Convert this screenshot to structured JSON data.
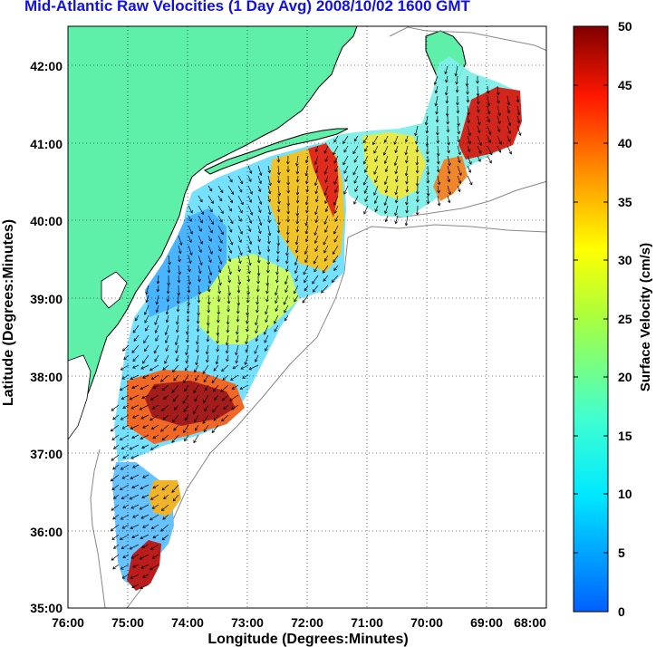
{
  "title": "Mid-Atlantic Raw Velocities (1 Day Avg) 2008/10/02 1600 GMT",
  "map": {
    "xlabel": "Longitude (Degrees:Minutes)",
    "ylabel": "Latitude (Degrees:Minutes)",
    "x_ticks": [
      "76:00",
      "75:00",
      "74:00",
      "73:00",
      "72:00",
      "71:00",
      "70:00",
      "69:00",
      "68:00"
    ],
    "y_ticks": [
      "42:00",
      "41:00",
      "40:00",
      "39:00",
      "38:00",
      "37:00",
      "36:00",
      "35:00"
    ],
    "lon_range": [
      -76,
      -68
    ],
    "lat_range": [
      35,
      42.5
    ],
    "grid": "dotted",
    "land_color": "#5ef0a8"
  },
  "colorbar": {
    "label": "Surface Velocity (cm/s)",
    "ticks": [
      "50",
      "45",
      "40",
      "35",
      "30",
      "25",
      "20",
      "15",
      "10",
      "5",
      "0"
    ],
    "range": [
      0,
      50
    ],
    "colormap": "jet"
  }
}
